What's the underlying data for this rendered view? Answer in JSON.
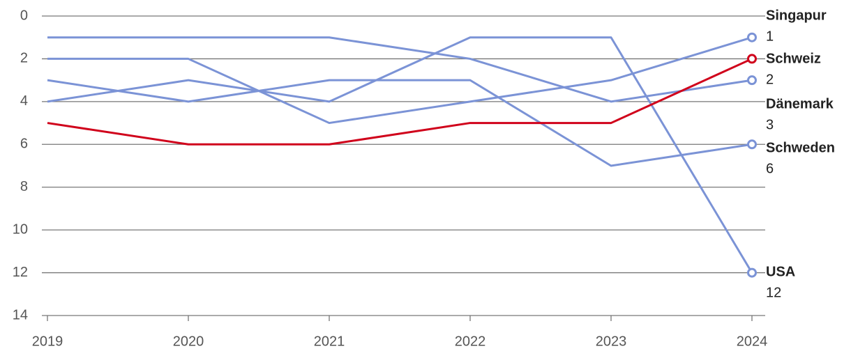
{
  "chart_data": {
    "type": "line",
    "x": [
      2019,
      2020,
      2021,
      2022,
      2023,
      2024
    ],
    "ylim": [
      0,
      14
    ],
    "yticks": [
      0,
      2,
      4,
      6,
      8,
      10,
      12,
      14
    ],
    "y_inverted": true,
    "grid": true,
    "series": [
      {
        "name": "Singapur",
        "color": "#7b93d6",
        "values": [
          2,
          2,
          5,
          4,
          3,
          1
        ]
      },
      {
        "name": "Schweiz",
        "color": "#d0021b",
        "values": [
          5,
          6,
          6,
          5,
          5,
          2
        ]
      },
      {
        "name": "Dänemark",
        "color": "#7b93d6",
        "values": [
          1,
          1,
          1,
          2,
          4,
          3
        ]
      },
      {
        "name": "Schweden",
        "color": "#7b93d6",
        "values": [
          3,
          4,
          3,
          3,
          7,
          6
        ]
      },
      {
        "name": "USA",
        "color": "#7b93d6",
        "values": [
          4,
          3,
          4,
          1,
          1,
          12
        ]
      }
    ]
  }
}
